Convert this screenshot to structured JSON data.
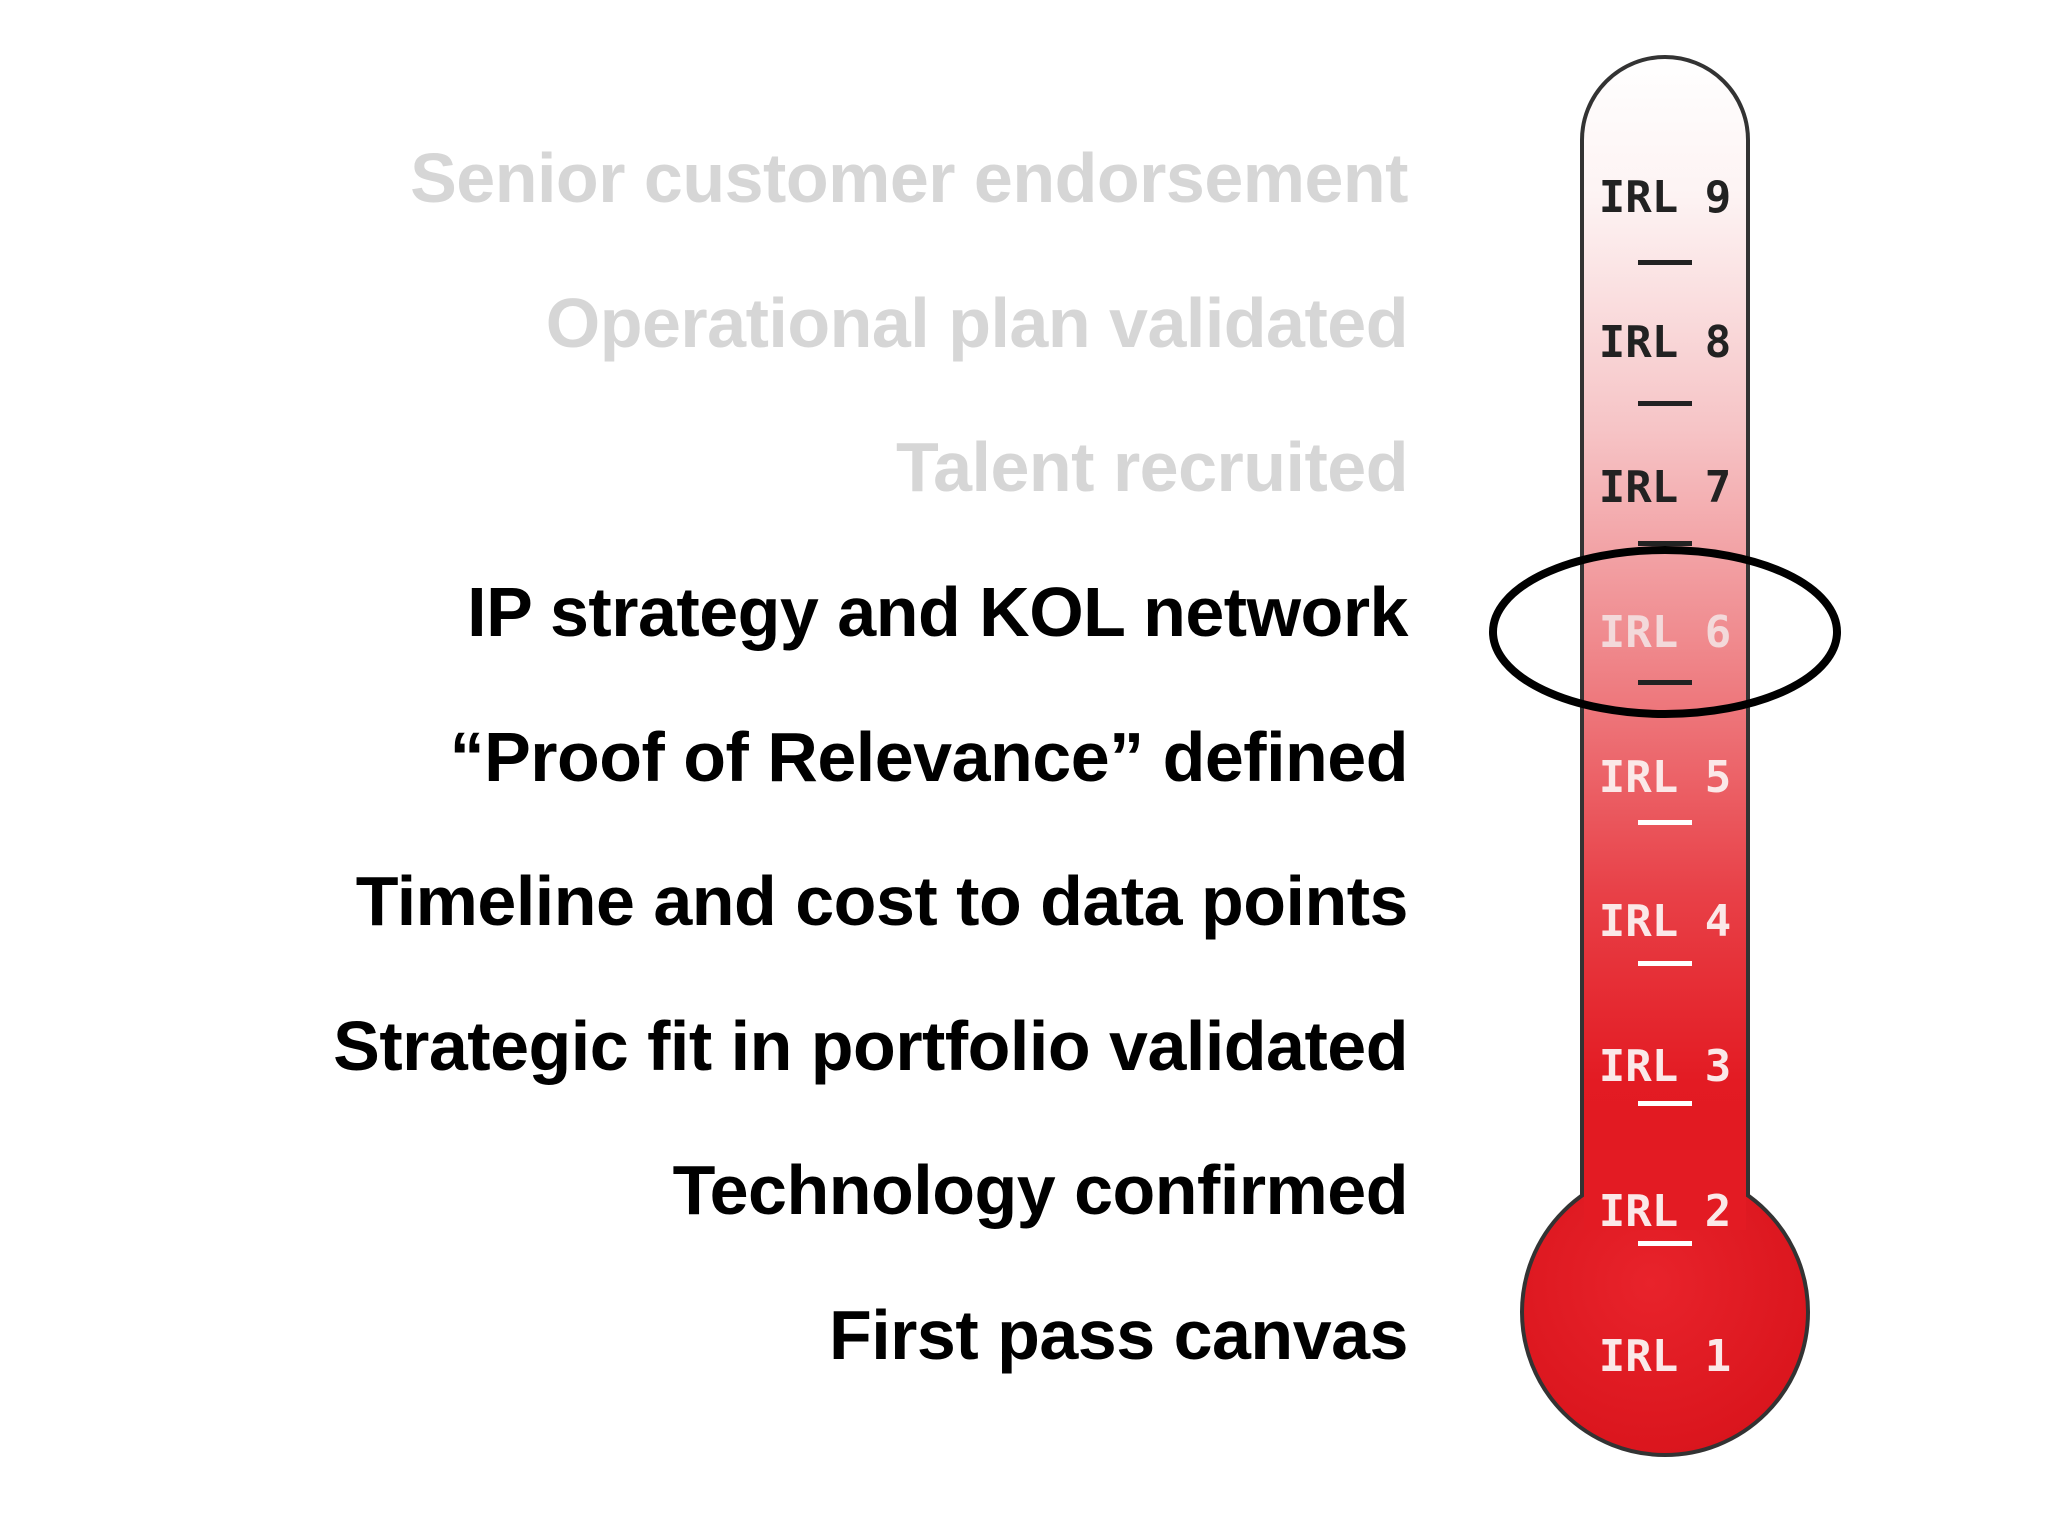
{
  "milestones": [
    {
      "label": "Senior customer endorsement",
      "state": "faded"
    },
    {
      "label": "Operational plan validated",
      "state": "faded"
    },
    {
      "label": "Talent recruited",
      "state": "faded"
    },
    {
      "label": "IP strategy and KOL network",
      "state": "active"
    },
    {
      "label": "“Proof of Relevance” defined",
      "state": "active"
    },
    {
      "label": "Timeline and cost to data points",
      "state": "active"
    },
    {
      "label": "Strategic fit in portfolio validated",
      "state": "active"
    },
    {
      "label": "Technology confirmed",
      "state": "active"
    },
    {
      "label": "First pass canvas",
      "state": "active"
    }
  ],
  "thermometer": {
    "levels": [
      "IRL 9",
      "IRL 8",
      "IRL 7",
      "IRL 6",
      "IRL 5",
      "IRL 4",
      "IRL 3",
      "IRL 2",
      "IRL 1"
    ],
    "highlighted_level": "IRL 6",
    "fill_color": "#e31b23",
    "outline_color": "#333333"
  }
}
